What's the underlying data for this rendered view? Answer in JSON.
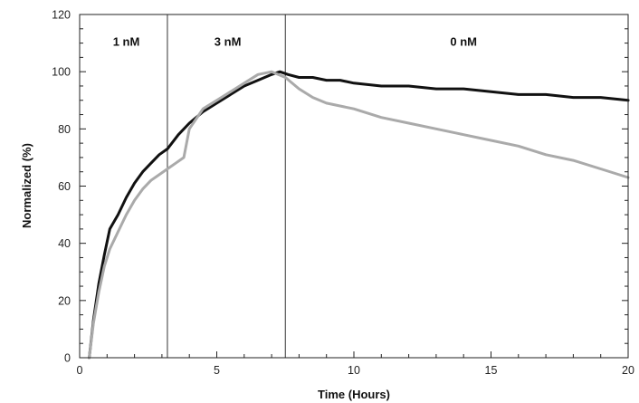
{
  "chart_data": {
    "type": "line",
    "title": "",
    "xlabel": "Time (Hours)",
    "ylabel": "Normalized (%)",
    "xlim": [
      0,
      20
    ],
    "ylim": [
      0,
      120
    ],
    "x_ticks": [
      0,
      5,
      10,
      15,
      20
    ],
    "y_ticks": [
      0,
      20,
      40,
      60,
      80,
      100,
      120
    ],
    "x_tick_labels": [
      "0",
      "5",
      "10",
      "15",
      "20"
    ],
    "y_tick_labels": [
      "0",
      "20",
      "40",
      "60",
      "80",
      "100",
      "120"
    ],
    "grid": false,
    "legend": "none",
    "dividers": [
      3.2,
      7.5
    ],
    "regions": [
      {
        "label": "1 nM",
        "x": 1.7
      },
      {
        "label": "3 nM",
        "x": 5.4
      },
      {
        "label": "0 nM",
        "x": 14.0
      }
    ],
    "series": [
      {
        "color": "#111111",
        "x": [
          0.35,
          0.5,
          0.7,
          0.9,
          1.1,
          1.4,
          1.7,
          2.0,
          2.3,
          2.6,
          2.9,
          3.2,
          3.6,
          4.0,
          4.5,
          5.0,
          5.5,
          6.0,
          6.5,
          7.0,
          7.3,
          7.6,
          8.0,
          8.5,
          9.0,
          9.5,
          10.0,
          11.0,
          12.0,
          13.0,
          14.0,
          15.0,
          16.0,
          17.0,
          18.0,
          19.0,
          20.0
        ],
        "y": [
          0,
          13,
          26,
          36,
          45,
          50,
          56,
          61,
          65,
          68,
          71,
          73,
          78,
          82,
          86,
          89,
          92,
          95,
          97,
          99,
          100,
          99,
          98,
          98,
          97,
          97,
          96,
          95,
          95,
          94,
          94,
          93,
          92,
          92,
          91,
          91,
          90
        ]
      },
      {
        "color": "#aaaaaa",
        "x": [
          0.35,
          0.5,
          0.7,
          0.9,
          1.1,
          1.4,
          1.7,
          2.0,
          2.3,
          2.6,
          2.9,
          3.2,
          3.5,
          3.8,
          4.0,
          4.5,
          5.0,
          5.5,
          6.0,
          6.5,
          7.0,
          7.5,
          8.0,
          8.5,
          9.0,
          10.0,
          11.0,
          12.0,
          13.0,
          14.0,
          15.0,
          16.0,
          17.0,
          18.0,
          19.0,
          20.0
        ],
        "y": [
          0,
          12,
          23,
          32,
          38,
          44,
          50,
          55,
          59,
          62,
          64,
          66,
          68,
          70,
          80,
          87,
          90,
          93,
          96,
          99,
          100,
          98,
          94,
          91,
          89,
          87,
          84,
          82,
          80,
          78,
          76,
          74,
          71,
          69,
          66,
          63
        ]
      }
    ]
  }
}
